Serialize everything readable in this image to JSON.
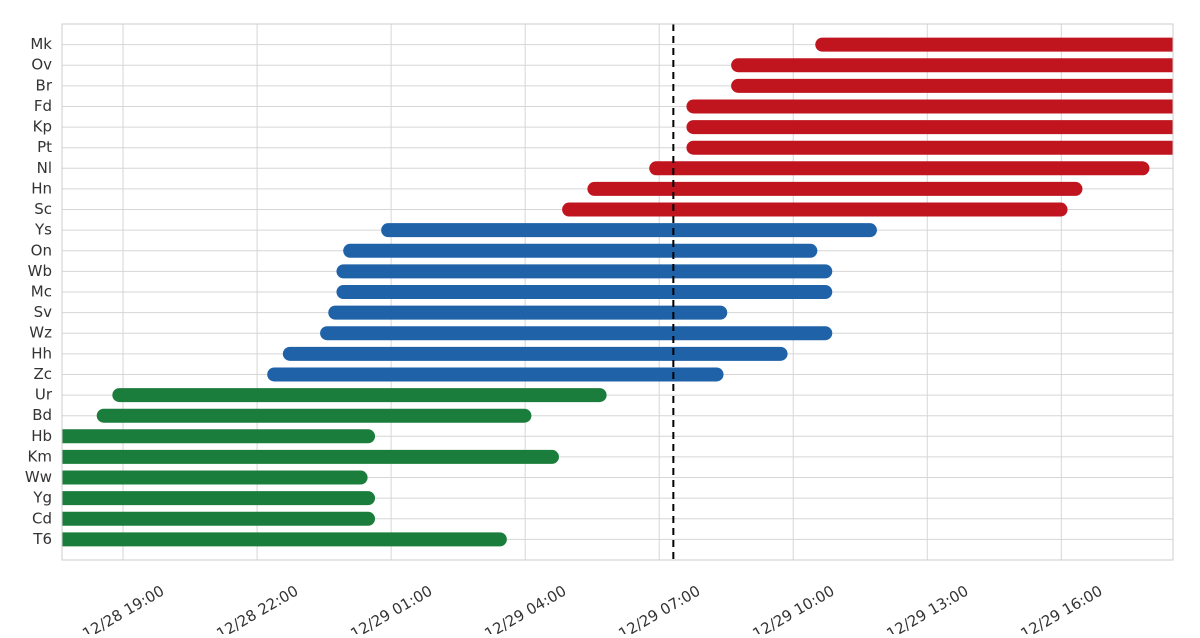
{
  "chart_data": {
    "type": "timeline",
    "categories": [
      "Mk",
      "Ov",
      "Br",
      "Fd",
      "Kp",
      "Pt",
      "Nl",
      "Hn",
      "Sc",
      "Ys",
      "On",
      "Wb",
      "Mc",
      "Sv",
      "Wz",
      "Hh",
      "Zc",
      "Ur",
      "Bd",
      "Hb",
      "Km",
      "Ww",
      "Yg",
      "Cd",
      "T6"
    ],
    "start": [
      "12/29 10:39",
      "12/29 08:46",
      "12/29 08:46",
      "12/29 07:46",
      "12/29 07:46",
      "12/29 07:46",
      "12/29 06:56",
      "12/29 05:33",
      "12/29 04:59",
      "12/29 00:56",
      "12/29 00:05",
      "12/28 23:56",
      "12/28 23:56",
      "12/28 23:45",
      "12/28 23:34",
      "12/28 22:44",
      "12/28 22:23",
      "12/28 18:55",
      "12/28 18:34",
      "12/28 17:38",
      "12/28 17:38",
      "12/28 17:38",
      "12/28 17:38",
      "12/28 17:38",
      "12/28 17:38"
    ],
    "end": [
      "12/29 18:30",
      "12/29 18:30",
      "12/29 18:30",
      "12/29 18:30",
      "12/29 18:30",
      "12/29 18:30",
      "12/29 17:49",
      "12/29 16:19",
      "12/29 15:59",
      "12/29 11:43",
      "12/29 10:23",
      "12/29 10:43",
      "12/29 10:43",
      "12/29 08:22",
      "12/29 10:43",
      "12/29 09:43",
      "12/29 08:17",
      "12/29 05:40",
      "12/29 03:59",
      "12/29 00:29",
      "12/29 04:36",
      "12/29 00:19",
      "12/29 00:29",
      "12/29 00:29",
      "12/29 03:26"
    ],
    "colors": [
      "#c0151f",
      "#c0151f",
      "#c0151f",
      "#c0151f",
      "#c0151f",
      "#c0151f",
      "#c0151f",
      "#c0151f",
      "#c0151f",
      "#1f62a8",
      "#1f62a8",
      "#1f62a8",
      "#1f62a8",
      "#1f62a8",
      "#1f62a8",
      "#1f62a8",
      "#1f62a8",
      "#1b7d3c",
      "#1b7d3c",
      "#1b7d3c",
      "#1b7d3c",
      "#1b7d3c",
      "#1b7d3c",
      "#1b7d3c",
      "#1b7d3c"
    ],
    "xlim": [
      "12/28 17:38",
      "12/29 18:30"
    ],
    "xticks": [
      "12/28 19:00",
      "12/28 22:00",
      "12/29 01:00",
      "12/29 04:00",
      "12/29 07:00",
      "12/29 10:00",
      "12/29 13:00",
      "12/29 16:00"
    ],
    "marker": "12/29 07:19",
    "grid": true
  }
}
